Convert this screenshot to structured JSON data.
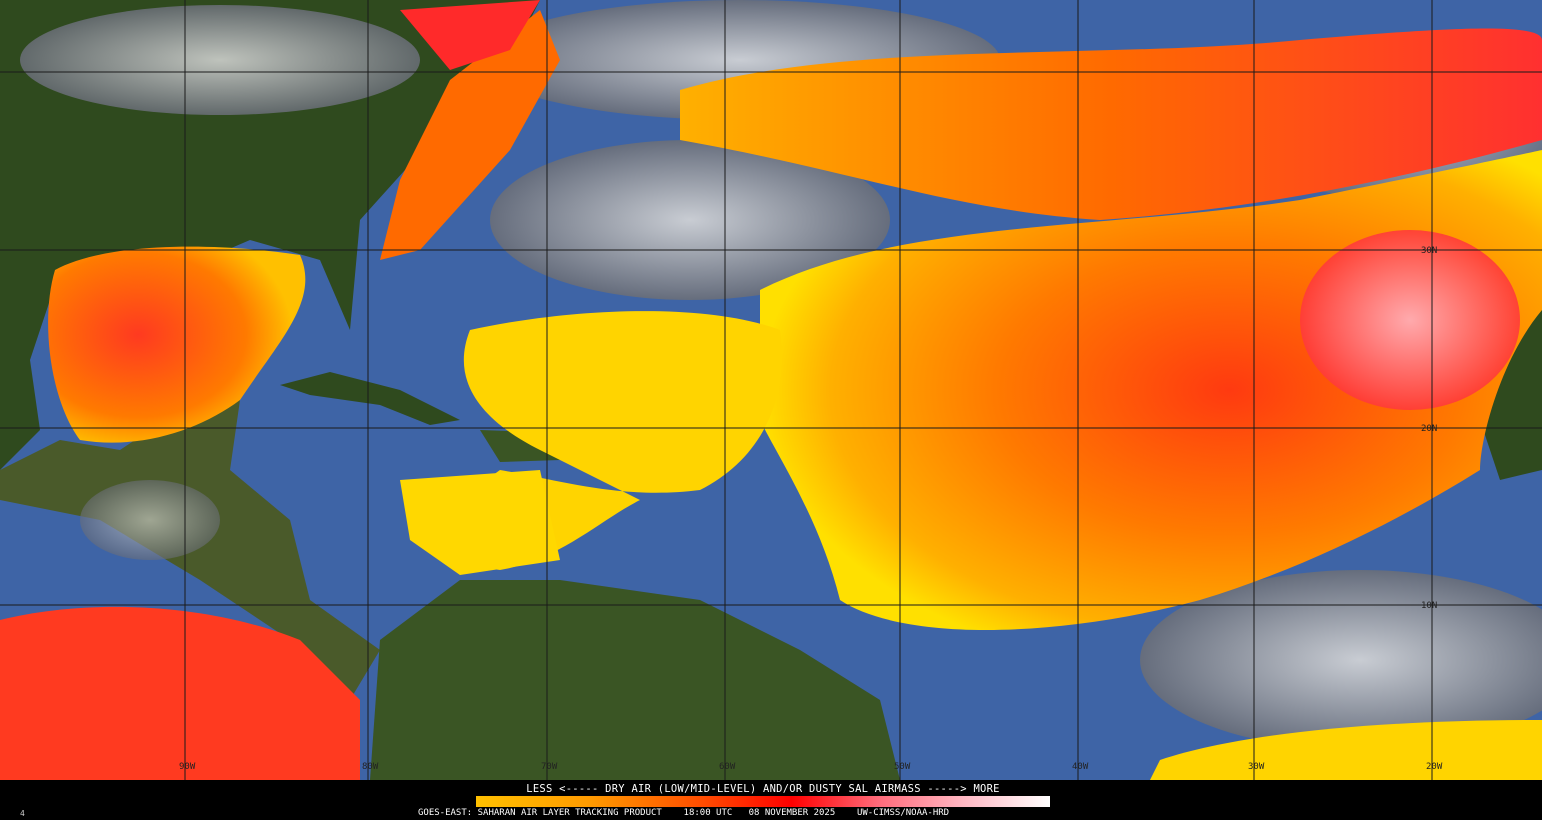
{
  "map": {
    "product": "GOES-EAST: SAHARAN AIR LAYER TRACKING PRODUCT",
    "time": "18:00 UTC",
    "date": "08 NOVEMBER 2025",
    "credit": "UW-CIMSS/NOAA-HRD",
    "frame_number": "4",
    "longitude_labels": [
      "90W",
      "80W",
      "70W",
      "60W",
      "50W",
      "40W",
      "30W",
      "20W"
    ],
    "latitude_labels": [
      "30N",
      "20N",
      "10N"
    ],
    "legend": {
      "title": "LESS <----- DRY AIR (LOW/MID-LEVEL) AND/OR DUSTY SAL AIRMASS -----> MORE",
      "colors": [
        "#ffc000",
        "#ff9a00",
        "#ff4a00",
        "#ff0000",
        "#ff6a7a",
        "#ffb8c4",
        "#ffffff"
      ]
    },
    "colors": {
      "ocean": "#3e64a6",
      "land": "#2f4a1e",
      "cloud": "#a8a8a8",
      "sal_low": "#ffd800",
      "sal_mid": "#ff8a00",
      "sal_high": "#ff2020"
    }
  }
}
